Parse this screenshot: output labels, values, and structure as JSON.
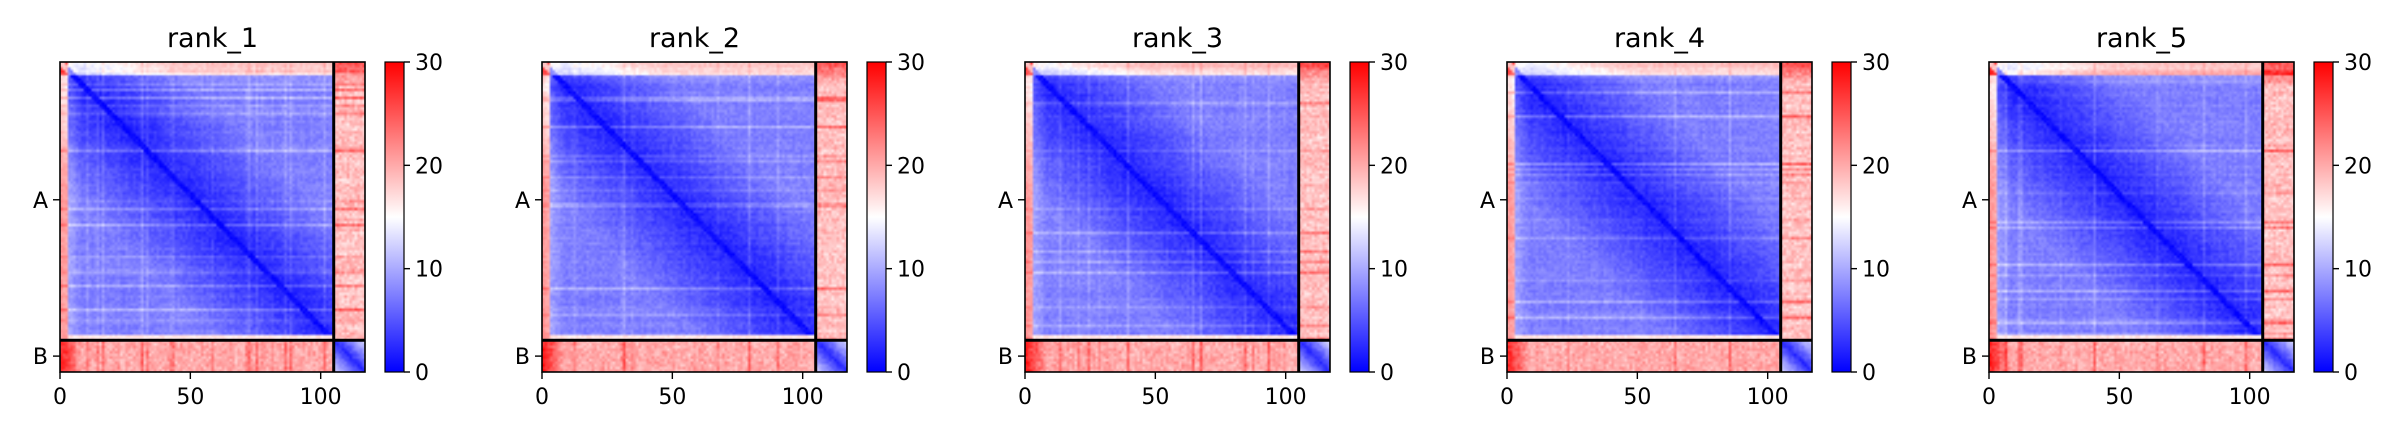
{
  "figure": {
    "colormap": [
      "#0000ff",
      "#ffffff",
      "#ff0000"
    ]
  },
  "chart_data": [
    {
      "type": "heatmap",
      "title": "rank_1",
      "xlim": [
        0,
        117
      ],
      "ylim": [
        0,
        117
      ],
      "x_ticks": [
        0,
        50,
        100
      ],
      "y_ticks": [
        {
          "label": "A",
          "value": 52
        },
        {
          "label": "B",
          "value": 111
        }
      ],
      "chain_boundary": 105,
      "colorbar": {
        "vmin": 0,
        "vmax": 30,
        "ticks": [
          0,
          10,
          20,
          30
        ]
      }
    },
    {
      "type": "heatmap",
      "title": "rank_2",
      "xlim": [
        0,
        117
      ],
      "ylim": [
        0,
        117
      ],
      "x_ticks": [
        0,
        50,
        100
      ],
      "y_ticks": [
        {
          "label": "A",
          "value": 52
        },
        {
          "label": "B",
          "value": 111
        }
      ],
      "chain_boundary": 105,
      "colorbar": {
        "vmin": 0,
        "vmax": 30,
        "ticks": [
          0,
          10,
          20,
          30
        ]
      }
    },
    {
      "type": "heatmap",
      "title": "rank_3",
      "xlim": [
        0,
        117
      ],
      "ylim": [
        0,
        117
      ],
      "x_ticks": [
        0,
        50,
        100
      ],
      "y_ticks": [
        {
          "label": "A",
          "value": 52
        },
        {
          "label": "B",
          "value": 111
        }
      ],
      "chain_boundary": 105,
      "colorbar": {
        "vmin": 0,
        "vmax": 30,
        "ticks": [
          0,
          10,
          20,
          30
        ]
      }
    },
    {
      "type": "heatmap",
      "title": "rank_4",
      "xlim": [
        0,
        117
      ],
      "ylim": [
        0,
        117
      ],
      "x_ticks": [
        0,
        50,
        100
      ],
      "y_ticks": [
        {
          "label": "A",
          "value": 52
        },
        {
          "label": "B",
          "value": 111
        }
      ],
      "chain_boundary": 105,
      "colorbar": {
        "vmin": 0,
        "vmax": 30,
        "ticks": [
          0,
          10,
          20,
          30
        ]
      }
    },
    {
      "type": "heatmap",
      "title": "rank_5",
      "xlim": [
        0,
        117
      ],
      "ylim": [
        0,
        117
      ],
      "x_ticks": [
        0,
        50,
        100
      ],
      "y_ticks": [
        {
          "label": "A",
          "value": 52
        },
        {
          "label": "B",
          "value": 111
        }
      ],
      "chain_boundary": 105,
      "colorbar": {
        "vmin": 0,
        "vmax": 30,
        "ticks": [
          0,
          10,
          20,
          30
        ]
      }
    }
  ]
}
